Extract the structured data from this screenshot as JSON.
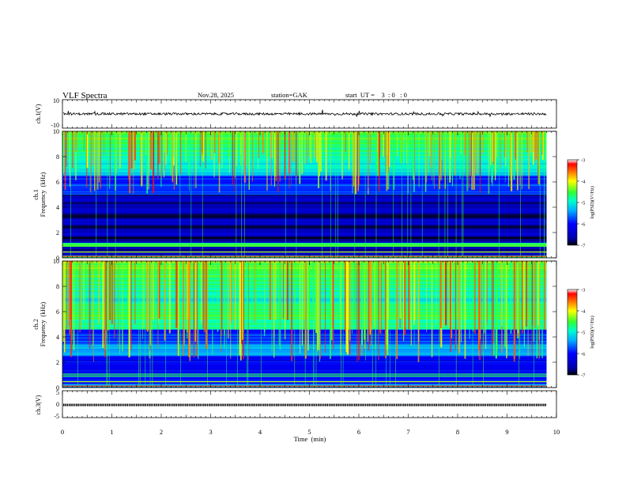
{
  "header": {
    "title": "VLF  Spectra",
    "date": "Nov.28, 2025",
    "station": "station=GAK",
    "start": "start  UT =    3  : 0   : 0"
  },
  "colors": {
    "colormap": [
      "#00007f",
      "#0000ff",
      "#007fff",
      "#00ffff",
      "#7fff7f",
      "#ffff00",
      "#ff7f00",
      "#ff0000",
      "#7f0000"
    ],
    "background": "#ffffff",
    "frame": "#000000"
  },
  "chart_data": [
    {
      "type": "line",
      "panel": "ch1-waveform",
      "ylabel": "ch.1(V)",
      "yticks": [
        "10",
        "-10"
      ],
      "ylim": [
        -10,
        10
      ],
      "xlim": [
        0,
        10
      ],
      "trace_level": 0,
      "trace_end_min": 9.8,
      "series": [
        {
          "values_description_level": 0
        }
      ]
    },
    {
      "type": "heatmap",
      "panel": "ch1-spectrogram",
      "ylabel": "Frequency  (kHz)",
      "channel_label": "ch.1",
      "yticks": [
        "0",
        "2",
        "4",
        "6",
        "8",
        "10"
      ],
      "ylim": [
        0,
        10
      ],
      "xlim": [
        0,
        10
      ],
      "data_end_min": 9.8,
      "colorbar": {
        "label": "log(PSD)(V²/Hz)",
        "ticks": [
          "-3",
          "-4",
          "-5",
          "-6",
          "-7"
        ],
        "range": [
          -7,
          -3
        ]
      }
    },
    {
      "type": "heatmap",
      "panel": "ch2-spectrogram",
      "ylabel": "Frequency  (kHz)",
      "channel_label": "ch.2",
      "yticks": [
        "0",
        "2",
        "4",
        "6",
        "8",
        "10"
      ],
      "ylim": [
        0,
        10
      ],
      "xlim": [
        0,
        10
      ],
      "data_end_min": 9.8,
      "colorbar": {
        "label": "log(PSD)(V²/Hz)",
        "ticks": [
          "-3",
          "-4",
          "-5",
          "-6",
          "-7"
        ],
        "range": [
          -7,
          -3
        ]
      }
    },
    {
      "type": "line",
      "panel": "ch3-waveform",
      "ylabel": "ch.3(V)",
      "yticks": [
        "5",
        "0",
        "-5"
      ],
      "ylim": [
        -5,
        5
      ],
      "xlim": [
        0,
        10
      ],
      "trace_level": -0.3,
      "trace_end_min": 9.8
    }
  ],
  "xaxis": {
    "label": "Time  (min)",
    "ticks": [
      "0",
      "1",
      "2",
      "3",
      "4",
      "5",
      "6",
      "7",
      "8",
      "9",
      "10"
    ]
  }
}
